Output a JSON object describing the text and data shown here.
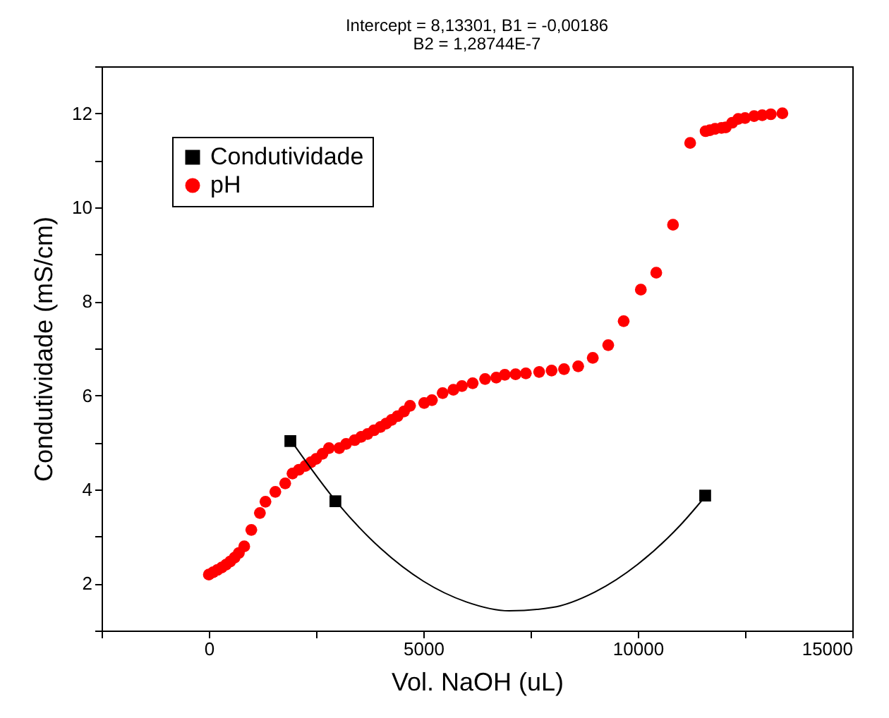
{
  "chart_data": {
    "type": "scatter",
    "title": "Intercept = 8,13301, B1 = -0,00186",
    "subtitle": "B2 = 1,28744E-7",
    "xlabel": "Vol. NaOH (uL)",
    "ylabel": "Condutividade (mS/cm)",
    "xlim": [
      -2500,
      15000
    ],
    "xticks": [
      {
        "value": -2500,
        "label": null
      },
      0,
      {
        "value": 2500,
        "label": null
      },
      5000,
      {
        "value": 7500,
        "label": null
      },
      10000,
      {
        "value": 12500,
        "label": null
      },
      15000
    ],
    "ylim": [
      1,
      13
    ],
    "yticks": [
      {
        "value": 1,
        "label": null
      },
      2,
      {
        "value": 3,
        "label": null
      },
      4,
      {
        "value": 5,
        "label": null
      },
      6,
      {
        "value": 7,
        "label": null
      },
      8,
      {
        "value": 9,
        "label": null
      },
      10,
      {
        "value": 11,
        "label": null
      },
      12,
      {
        "value": 13,
        "label": null
      }
    ],
    "grid": false,
    "legend": "top left",
    "series": [
      {
        "name": "Condutividade",
        "type": "scatter",
        "marker": "square",
        "color": "#000000",
        "x": [
          1900,
          2950,
          11570
        ],
        "values": [
          5.03,
          3.75,
          3.87
        ]
      },
      {
        "name": "pH",
        "type": "scatter",
        "marker": "circle",
        "color": "#ff0000",
        "x": [
          0,
          100,
          200,
          300,
          400,
          500,
          600,
          700,
          825,
          990,
          1190,
          1320,
          1550,
          1780,
          1950,
          2100,
          2250,
          2380,
          2500,
          2650,
          2800,
          3040,
          3200,
          3400,
          3550,
          3700,
          3850,
          4000,
          4130,
          4260,
          4400,
          4550,
          4690,
          5020,
          5200,
          5450,
          5700,
          5900,
          6150,
          6440,
          6700,
          6900,
          7150,
          7390,
          7700,
          7990,
          8280,
          8610,
          8950,
          9310,
          9670,
          10070,
          10430,
          10820,
          11220,
          11580,
          11680,
          11800,
          11950,
          12050,
          12200,
          12340,
          12500,
          12710,
          12900,
          13100,
          13370
        ],
        "values": [
          2.19,
          2.24,
          2.29,
          2.34,
          2.4,
          2.47,
          2.55,
          2.65,
          2.79,
          3.14,
          3.5,
          3.74,
          3.95,
          4.13,
          4.34,
          4.42,
          4.5,
          4.58,
          4.65,
          4.76,
          4.88,
          4.88,
          4.97,
          5.05,
          5.12,
          5.18,
          5.26,
          5.33,
          5.4,
          5.48,
          5.56,
          5.66,
          5.78,
          5.84,
          5.9,
          6.05,
          6.12,
          6.2,
          6.26,
          6.35,
          6.38,
          6.44,
          6.45,
          6.47,
          6.5,
          6.53,
          6.56,
          6.62,
          6.8,
          7.07,
          7.58,
          8.25,
          8.61,
          9.63,
          11.37,
          11.62,
          11.64,
          11.67,
          11.69,
          11.7,
          11.8,
          11.88,
          11.9,
          11.94,
          11.96,
          11.98,
          12.0
        ]
      },
      {
        "type": "line",
        "color": "#000000",
        "x": [
          1900,
          3000,
          4000,
          5000,
          6000,
          7000,
          8000,
          9000,
          10000,
          11000,
          11570
        ],
        "values": [
          5.06,
          3.71,
          2.75,
          2.05,
          1.61,
          1.42,
          1.49,
          1.82,
          2.41,
          3.25,
          3.85
        ]
      }
    ]
  }
}
